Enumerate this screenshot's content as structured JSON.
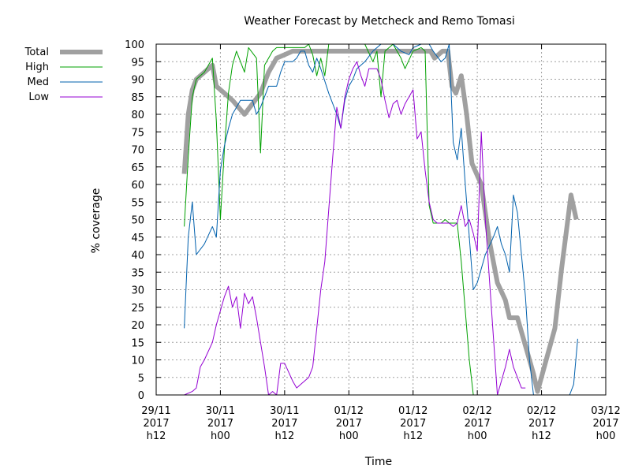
{
  "chart_data": {
    "type": "line",
    "title": "Weather Forecast by Metcheck and Remo Tomasi",
    "xlabel": "Time",
    "ylabel": "% coverage",
    "ylim": [
      0,
      100
    ],
    "xlim": [
      "2017-11-29 12:00",
      "2017-12-03 00:00"
    ],
    "yticks": [
      0,
      5,
      10,
      15,
      20,
      25,
      30,
      35,
      40,
      45,
      50,
      55,
      60,
      65,
      70,
      75,
      80,
      85,
      90,
      95,
      100
    ],
    "xticks": [
      {
        "t": "2017-11-29 12:00",
        "lines": [
          "29/11",
          "2017",
          "h12"
        ]
      },
      {
        "t": "2017-11-30 00:00",
        "lines": [
          "30/11",
          "2017",
          "h00"
        ]
      },
      {
        "t": "2017-11-30 12:00",
        "lines": [
          "30/11",
          "2017",
          "h12"
        ]
      },
      {
        "t": "2017-12-01 00:00",
        "lines": [
          "01/12",
          "2017",
          "h00"
        ]
      },
      {
        "t": "2017-12-01 12:00",
        "lines": [
          "01/12",
          "2017",
          "h12"
        ]
      },
      {
        "t": "2017-12-02 00:00",
        "lines": [
          "02/12",
          "2017",
          "h00"
        ]
      },
      {
        "t": "2017-12-02 12:00",
        "lines": [
          "02/12",
          "2017",
          "h12"
        ]
      },
      {
        "t": "2017-12-03 00:00",
        "lines": [
          "03/12",
          "2017",
          "h00"
        ]
      }
    ],
    "grid": true,
    "legend_position": "top-left-outside",
    "series": [
      {
        "name": "Total",
        "color": "#a0a0a0",
        "width": 6,
        "points": [
          [
            "2017-11-29 17:15",
            63
          ],
          [
            "2017-11-29 18:00",
            80
          ],
          [
            "2017-11-29 18:45",
            87
          ],
          [
            "2017-11-29 19:30",
            90
          ],
          [
            "2017-11-29 21:00",
            92
          ],
          [
            "2017-11-29 22:30",
            94
          ],
          [
            "2017-11-29 23:15",
            88
          ],
          [
            "2017-11-30 00:45",
            86
          ],
          [
            "2017-11-30 02:15",
            84
          ],
          [
            "2017-11-30 04:30",
            80
          ],
          [
            "2017-11-30 06:00",
            83
          ],
          [
            "2017-11-30 07:30",
            86
          ],
          [
            "2017-11-30 09:00",
            92
          ],
          [
            "2017-11-30 10:30",
            96
          ],
          [
            "2017-11-30 12:00",
            97
          ],
          [
            "2017-11-30 13:30",
            98
          ],
          [
            "2017-12-01 10:00",
            98
          ],
          [
            "2017-12-01 15:15",
            98
          ],
          [
            "2017-12-01 16:00",
            96
          ],
          [
            "2017-12-01 16:45",
            97
          ],
          [
            "2017-12-01 17:30",
            98
          ],
          [
            "2017-12-01 18:30",
            98
          ],
          [
            "2017-12-01 19:15",
            88
          ],
          [
            "2017-12-01 20:00",
            86
          ],
          [
            "2017-12-01 21:00",
            91
          ],
          [
            "2017-12-01 22:00",
            80
          ],
          [
            "2017-12-01 23:00",
            66
          ],
          [
            "2017-12-02 00:45",
            60
          ],
          [
            "2017-12-02 02:15",
            44
          ],
          [
            "2017-12-02 03:45",
            32
          ],
          [
            "2017-12-02 05:15",
            27
          ],
          [
            "2017-12-02 06:00",
            22
          ],
          [
            "2017-12-02 07:30",
            22
          ],
          [
            "2017-12-02 10:30",
            6
          ],
          [
            "2017-12-02 11:15",
            1
          ],
          [
            "2017-12-02 14:30",
            19
          ],
          [
            "2017-12-02 15:45",
            36
          ],
          [
            "2017-12-02 17:30",
            57
          ],
          [
            "2017-12-02 18:30",
            50
          ]
        ]
      },
      {
        "name": "High",
        "color": "#00a000",
        "width": 1,
        "points": [
          [
            "2017-11-29 17:15",
            48
          ],
          [
            "2017-11-29 18:00",
            68
          ],
          [
            "2017-11-29 18:45",
            85
          ],
          [
            "2017-11-29 19:30",
            90
          ],
          [
            "2017-11-29 21:00",
            92
          ],
          [
            "2017-11-29 22:30",
            96
          ],
          [
            "2017-11-29 23:15",
            78
          ],
          [
            "2017-11-30 00:00",
            50
          ],
          [
            "2017-11-30 00:45",
            70
          ],
          [
            "2017-11-30 01:30",
            86
          ],
          [
            "2017-11-30 02:15",
            94
          ],
          [
            "2017-11-30 03:00",
            98
          ],
          [
            "2017-11-30 04:30",
            92
          ],
          [
            "2017-11-30 05:15",
            99
          ],
          [
            "2017-11-30 06:45",
            96
          ],
          [
            "2017-11-30 07:30",
            69
          ],
          [
            "2017-11-30 08:15",
            94
          ],
          [
            "2017-11-30 09:45",
            98
          ],
          [
            "2017-11-30 10:30",
            99
          ],
          [
            "2017-11-30 15:45",
            99
          ],
          [
            "2017-11-30 16:30",
            100
          ],
          [
            "2017-11-30 17:15",
            97
          ],
          [
            "2017-11-30 18:00",
            91
          ],
          [
            "2017-11-30 18:45",
            96
          ],
          [
            "2017-11-30 19:30",
            91
          ],
          [
            "2017-11-30 20:15",
            100
          ],
          [
            "2017-12-01 03:00",
            100
          ],
          [
            "2017-12-01 04:30",
            95
          ],
          [
            "2017-12-01 05:15",
            98
          ],
          [
            "2017-12-01 06:00",
            85
          ],
          [
            "2017-12-01 06:45",
            98
          ],
          [
            "2017-12-01 08:15",
            100
          ],
          [
            "2017-12-01 09:45",
            96
          ],
          [
            "2017-12-01 10:30",
            93
          ],
          [
            "2017-12-01 12:00",
            98
          ],
          [
            "2017-12-01 13:30",
            99
          ],
          [
            "2017-12-01 14:15",
            98
          ],
          [
            "2017-12-01 15:00",
            54
          ],
          [
            "2017-12-01 15:45",
            49
          ],
          [
            "2017-12-01 17:15",
            49
          ],
          [
            "2017-12-01 18:00",
            50
          ],
          [
            "2017-12-01 18:45",
            49
          ],
          [
            "2017-12-01 20:15",
            49
          ],
          [
            "2017-12-01 21:00",
            38
          ],
          [
            "2017-12-01 22:30",
            10
          ],
          [
            "2017-12-01 23:15",
            0
          ]
        ]
      },
      {
        "name": "Med",
        "color": "#0060ad",
        "width": 1,
        "points": [
          [
            "2017-11-29 17:15",
            19
          ],
          [
            "2017-11-29 18:00",
            45
          ],
          [
            "2017-11-29 18:45",
            55
          ],
          [
            "2017-11-29 19:30",
            40
          ],
          [
            "2017-11-29 21:00",
            43
          ],
          [
            "2017-11-29 22:30",
            48
          ],
          [
            "2017-11-29 23:15",
            45
          ],
          [
            "2017-11-30 00:00",
            64
          ],
          [
            "2017-11-30 00:45",
            71
          ],
          [
            "2017-11-30 01:30",
            76
          ],
          [
            "2017-11-30 02:15",
            80
          ],
          [
            "2017-11-30 03:00",
            82
          ],
          [
            "2017-11-30 03:45",
            84
          ],
          [
            "2017-11-30 06:00",
            84
          ],
          [
            "2017-11-30 06:45",
            80
          ],
          [
            "2017-11-30 07:30",
            82
          ],
          [
            "2017-11-30 09:00",
            88
          ],
          [
            "2017-11-30 10:30",
            88
          ],
          [
            "2017-11-30 11:15",
            92
          ],
          [
            "2017-11-30 12:00",
            95
          ],
          [
            "2017-11-30 13:30",
            95
          ],
          [
            "2017-11-30 14:15",
            96
          ],
          [
            "2017-11-30 15:00",
            98
          ],
          [
            "2017-11-30 15:45",
            98
          ],
          [
            "2017-11-30 16:30",
            94
          ],
          [
            "2017-11-30 17:15",
            92
          ],
          [
            "2017-11-30 18:00",
            96
          ],
          [
            "2017-11-30 18:45",
            93
          ],
          [
            "2017-11-30 20:15",
            86
          ],
          [
            "2017-11-30 21:45",
            80
          ],
          [
            "2017-11-30 22:30",
            76
          ],
          [
            "2017-11-30 23:15",
            84
          ],
          [
            "2017-12-01 00:00",
            88
          ],
          [
            "2017-12-01 00:45",
            90
          ],
          [
            "2017-12-01 01:30",
            93
          ],
          [
            "2017-12-01 03:00",
            95
          ],
          [
            "2017-12-01 04:30",
            98
          ],
          [
            "2017-12-01 06:00",
            100
          ],
          [
            "2017-12-01 08:15",
            100
          ],
          [
            "2017-12-01 09:45",
            98
          ],
          [
            "2017-12-01 11:15",
            97
          ],
          [
            "2017-12-01 12:00",
            99
          ],
          [
            "2017-12-01 13:30",
            100
          ],
          [
            "2017-12-01 15:00",
            100
          ],
          [
            "2017-12-01 15:45",
            98
          ],
          [
            "2017-12-01 17:15",
            95
          ],
          [
            "2017-12-01 18:00",
            96
          ],
          [
            "2017-12-01 18:45",
            100
          ],
          [
            "2017-12-01 19:30",
            72
          ],
          [
            "2017-12-01 20:15",
            67
          ],
          [
            "2017-12-01 21:00",
            76
          ],
          [
            "2017-12-01 21:45",
            60
          ],
          [
            "2017-12-01 23:15",
            30
          ],
          [
            "2017-12-02 00:00",
            32
          ],
          [
            "2017-12-02 00:45",
            36
          ],
          [
            "2017-12-02 01:30",
            40
          ],
          [
            "2017-12-02 03:00",
            45
          ],
          [
            "2017-12-02 03:45",
            48
          ],
          [
            "2017-12-02 04:30",
            43
          ],
          [
            "2017-12-02 05:15",
            40
          ],
          [
            "2017-12-02 06:00",
            35
          ],
          [
            "2017-12-02 06:45",
            57
          ],
          [
            "2017-12-02 07:30",
            52
          ],
          [
            "2017-12-02 09:00",
            28
          ],
          [
            "2017-12-02 09:45",
            10
          ],
          [
            "2017-12-02 10:30",
            0
          ],
          [
            "2017-12-02 17:15",
            0
          ],
          [
            "2017-12-02 18:00",
            3
          ],
          [
            "2017-12-02 18:45",
            16
          ]
        ]
      },
      {
        "name": "Low",
        "color": "#9400d3",
        "width": 1,
        "points": [
          [
            "2017-11-29 17:15",
            0
          ],
          [
            "2017-11-29 18:45",
            1
          ],
          [
            "2017-11-29 19:30",
            2
          ],
          [
            "2017-11-29 20:15",
            8
          ],
          [
            "2017-11-29 21:00",
            10
          ],
          [
            "2017-11-29 22:30",
            15
          ],
          [
            "2017-11-29 23:15",
            20
          ],
          [
            "2017-11-30 00:45",
            28
          ],
          [
            "2017-11-30 01:30",
            31
          ],
          [
            "2017-11-30 02:15",
            25
          ],
          [
            "2017-11-30 03:00",
            28
          ],
          [
            "2017-11-30 03:45",
            19
          ],
          [
            "2017-11-30 04:30",
            29
          ],
          [
            "2017-11-30 05:15",
            26
          ],
          [
            "2017-11-30 06:00",
            28
          ],
          [
            "2017-11-30 06:45",
            22
          ],
          [
            "2017-11-30 07:30",
            15
          ],
          [
            "2017-11-30 08:15",
            8
          ],
          [
            "2017-11-30 09:00",
            0
          ],
          [
            "2017-11-30 09:45",
            1
          ],
          [
            "2017-11-30 10:30",
            0
          ],
          [
            "2017-11-30 11:15",
            9
          ],
          [
            "2017-11-30 12:00",
            9
          ],
          [
            "2017-11-30 13:30",
            4
          ],
          [
            "2017-11-30 14:15",
            2
          ],
          [
            "2017-11-30 15:00",
            3
          ],
          [
            "2017-11-30 16:30",
            5
          ],
          [
            "2017-11-30 17:15",
            8
          ],
          [
            "2017-11-30 18:45",
            30
          ],
          [
            "2017-11-30 19:30",
            38
          ],
          [
            "2017-11-30 21:00",
            68
          ],
          [
            "2017-11-30 21:45",
            82
          ],
          [
            "2017-11-30 22:30",
            76
          ],
          [
            "2017-11-30 23:15",
            85
          ],
          [
            "2017-12-01 00:00",
            90
          ],
          [
            "2017-12-01 00:45",
            93
          ],
          [
            "2017-12-01 01:30",
            95
          ],
          [
            "2017-12-01 02:15",
            91
          ],
          [
            "2017-12-01 03:00",
            88
          ],
          [
            "2017-12-01 03:45",
            93
          ],
          [
            "2017-12-01 05:15",
            93
          ],
          [
            "2017-12-01 06:00",
            90
          ],
          [
            "2017-12-01 06:45",
            84
          ],
          [
            "2017-12-01 07:30",
            79
          ],
          [
            "2017-12-01 08:15",
            83
          ],
          [
            "2017-12-01 09:00",
            84
          ],
          [
            "2017-12-01 09:45",
            80
          ],
          [
            "2017-12-01 10:30",
            83
          ],
          [
            "2017-12-01 12:00",
            87
          ],
          [
            "2017-12-01 12:45",
            73
          ],
          [
            "2017-12-01 13:30",
            75
          ],
          [
            "2017-12-01 14:15",
            64
          ],
          [
            "2017-12-01 15:00",
            55
          ],
          [
            "2017-12-01 15:45",
            50
          ],
          [
            "2017-12-01 16:30",
            49
          ],
          [
            "2017-12-01 18:45",
            49
          ],
          [
            "2017-12-01 19:30",
            48
          ],
          [
            "2017-12-01 20:15",
            49
          ],
          [
            "2017-12-01 21:00",
            54
          ],
          [
            "2017-12-01 21:45",
            48
          ],
          [
            "2017-12-01 22:30",
            50
          ],
          [
            "2017-12-01 23:15",
            46
          ],
          [
            "2017-12-02 00:00",
            41
          ],
          [
            "2017-12-02 00:45",
            75
          ],
          [
            "2017-12-02 01:30",
            50
          ],
          [
            "2017-12-02 03:45",
            0
          ],
          [
            "2017-12-02 05:15",
            8
          ],
          [
            "2017-12-02 06:00",
            13
          ],
          [
            "2017-12-02 06:45",
            8
          ],
          [
            "2017-12-02 08:15",
            2
          ],
          [
            "2017-12-02 09:00",
            2
          ]
        ]
      }
    ]
  }
}
